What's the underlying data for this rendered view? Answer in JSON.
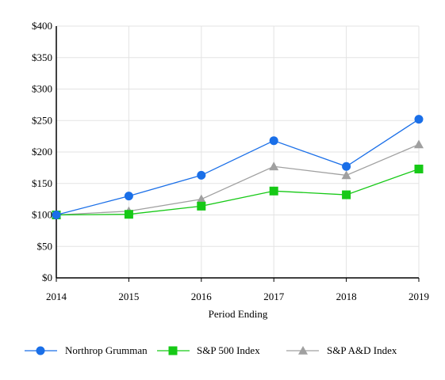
{
  "chart_data": {
    "type": "line",
    "title": "",
    "xlabel": "Period Ending",
    "ylabel": "",
    "x": [
      "2014",
      "2015",
      "2016",
      "2017",
      "2018",
      "2019"
    ],
    "ylim": [
      0,
      400
    ],
    "yticks": [
      "$0",
      "$50",
      "$100",
      "$150",
      "$200",
      "$250",
      "$300",
      "$350",
      "$400"
    ],
    "ytick_values": [
      0,
      50,
      100,
      150,
      200,
      250,
      300,
      350,
      400
    ],
    "grid": true,
    "legend_position": "bottom",
    "series": [
      {
        "name": "Northrop Grumman",
        "values": [
          100,
          130,
          163,
          218,
          177,
          252
        ],
        "color": "#1a6fe8",
        "marker": "circle"
      },
      {
        "name": "S&P 500 Index",
        "values": [
          100,
          101,
          114,
          138,
          132,
          173
        ],
        "color": "#16c916",
        "marker": "square"
      },
      {
        "name": "S&P A&D Index",
        "values": [
          100,
          106,
          125,
          177,
          163,
          212
        ],
        "color": "#a0a0a0",
        "marker": "triangle"
      }
    ]
  }
}
